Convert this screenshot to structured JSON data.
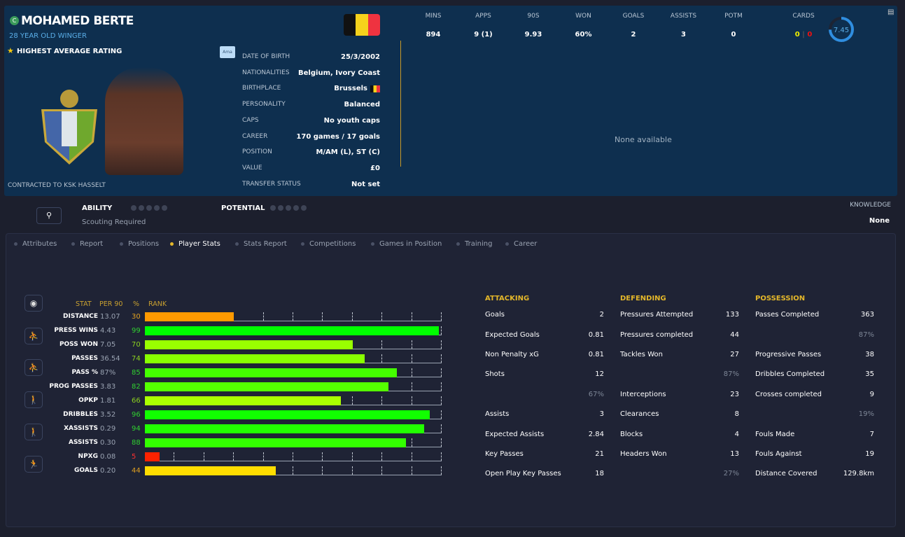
{
  "player": {
    "name": "MOHAMED BERTE",
    "club_badge_letter": "C",
    "subtitle": "28 YEAR OLD WINGER",
    "highlight": "HIGHEST AVERAGE RATING",
    "contract": "CONTRACTED TO KSK HASSELT",
    "tag": "Ama",
    "flag_colors": [
      "#111111",
      "#f6d21c",
      "#ef3340"
    ]
  },
  "info": [
    {
      "label": "DATE OF BIRTH",
      "value": "25/3/2002"
    },
    {
      "label": "NATIONALITIES",
      "value": "Belgium, Ivory Coast"
    },
    {
      "label": "BIRTHPLACE",
      "value": "Brussels"
    },
    {
      "label": "PERSONALITY",
      "value": "Balanced"
    },
    {
      "label": "CAPS",
      "value": "No youth caps"
    },
    {
      "label": "CAREER",
      "value": "170 games /  17 goals"
    },
    {
      "label": "POSITION",
      "value": "M/AM (L), ST (C)"
    },
    {
      "label": "VALUE",
      "value": "£0"
    },
    {
      "label": "TRANSFER STATUS",
      "value": "Not set"
    }
  ],
  "summary": [
    {
      "label": "MINS",
      "value": "894"
    },
    {
      "label": "APPS",
      "value": "9 (1)"
    },
    {
      "label": "90S",
      "value": "9.93"
    },
    {
      "label": "WON",
      "value": "60%"
    },
    {
      "label": "GOALS",
      "value": "2"
    },
    {
      "label": "ASSISTS",
      "value": "3"
    },
    {
      "label": "POTM",
      "value": "0"
    }
  ],
  "cards": {
    "label": "CARDS",
    "yellow": "0",
    "red": "0"
  },
  "rating": {
    "value": "7.45",
    "fraction": 0.745
  },
  "none_available": "None available",
  "ability": {
    "label": "ABILITY",
    "note": "Scouting Required",
    "potential_label": "POTENTIAL",
    "knowledge_label": "KNOWLEDGE",
    "knowledge_value": "None"
  },
  "tabs": [
    "Attributes",
    "Report",
    "Positions",
    "Player Stats",
    "Stats Report",
    "Competitions",
    "Games in Position",
    "Training",
    "Career"
  ],
  "active_tab": "Player Stats",
  "rank_header": {
    "stat": "STAT",
    "per90": "PER 90",
    "pct": "%",
    "rank": "RANK"
  },
  "rank_rows": [
    {
      "stat": "DISTANCE",
      "per90": "13.07",
      "pct": 30,
      "color": "#ff9a00"
    },
    {
      "stat": "PRESS WINS",
      "per90": "4.43",
      "pct": 99,
      "color": "#00ff00"
    },
    {
      "stat": "POSS WON",
      "per90": "7.05",
      "pct": 70,
      "color": "#99ff00"
    },
    {
      "stat": "PASSES",
      "per90": "36.54",
      "pct": 74,
      "color": "#88ff00"
    },
    {
      "stat": "PASS %",
      "per90": "87%",
      "pct": 85,
      "color": "#44ff00"
    },
    {
      "stat": "PROG PASSES",
      "per90": "3.83",
      "pct": 82,
      "color": "#55ff00"
    },
    {
      "stat": "OPKP",
      "per90": "1.81",
      "pct": 66,
      "color": "#aaff00"
    },
    {
      "stat": "DRIBBLES",
      "per90": "3.52",
      "pct": 96,
      "color": "#11ff00"
    },
    {
      "stat": "XASSISTS",
      "per90": "0.29",
      "pct": 94,
      "color": "#22ff00"
    },
    {
      "stat": "ASSISTS",
      "per90": "0.30",
      "pct": 88,
      "color": "#33ff00"
    },
    {
      "stat": "NPXG",
      "per90": "0.08",
      "pct": 5,
      "color": "#ff2200"
    },
    {
      "stat": "GOALS",
      "per90": "0.20",
      "pct": 44,
      "color": "#ffdd00"
    }
  ],
  "sections": [
    {
      "title": "ATTACKING",
      "rows": [
        [
          "Goals",
          "2"
        ],
        [
          "Expected Goals",
          "0.81"
        ],
        [
          "Non Penalty xG",
          "0.81"
        ],
        [
          "Shots",
          "12"
        ],
        [
          "",
          "67%"
        ],
        [
          "Assists",
          "3"
        ],
        [
          "Expected Assists",
          "2.84"
        ],
        [
          "Key Passes",
          "21"
        ],
        [
          "Open Play Key Passes",
          "18"
        ]
      ]
    },
    {
      "title": "DEFENDING",
      "rows": [
        [
          "Pressures Attempted",
          "133"
        ],
        [
          "Pressures completed",
          "44"
        ],
        [
          "Tackles Won",
          "27"
        ],
        [
          "",
          "87%"
        ],
        [
          "Interceptions",
          "23"
        ],
        [
          "Clearances",
          "8"
        ],
        [
          "Blocks",
          "4"
        ],
        [
          "Headers Won",
          "13"
        ],
        [
          "",
          "27%"
        ]
      ]
    },
    {
      "title": "POSSESSION",
      "rows": [
        [
          "Passes Completed",
          "363"
        ],
        [
          "",
          "87%"
        ],
        [
          "Progressive Passes",
          "38"
        ],
        [
          "Dribbles Completed",
          "35"
        ],
        [
          "Crosses completed",
          "9"
        ],
        [
          "",
          "19%"
        ],
        [
          "Fouls Made",
          "7"
        ],
        [
          "Fouls Against",
          "19"
        ],
        [
          "Distance Covered",
          "129.8km"
        ]
      ]
    }
  ]
}
